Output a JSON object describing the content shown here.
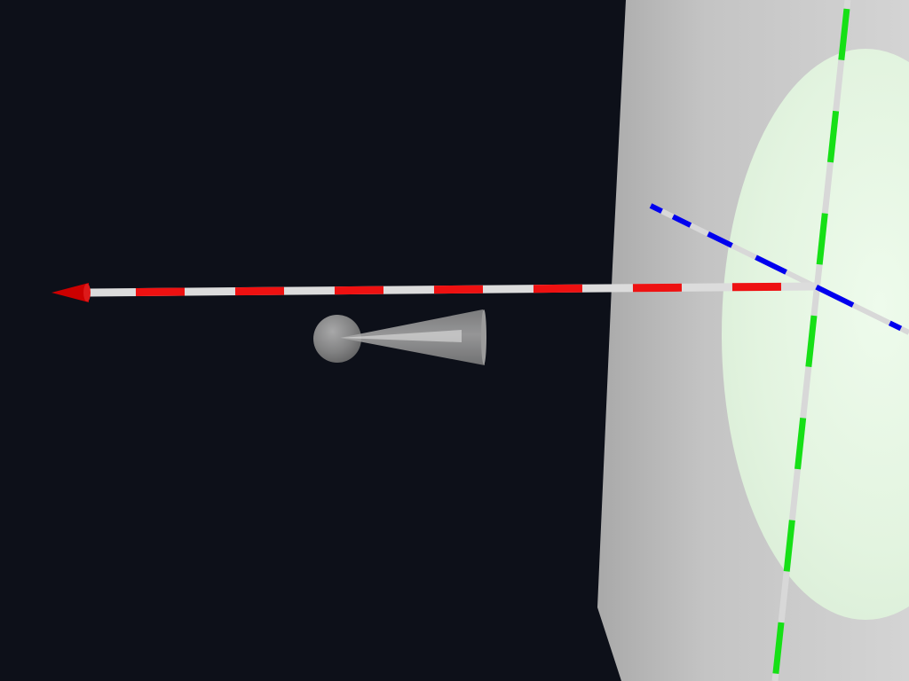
{
  "scene": {
    "background_color": "#0d1019",
    "wall_color": "#c8c8c8",
    "spotlight_color": "#e4f6e2",
    "axes": [
      {
        "name": "x-axis",
        "color": "#ff0000",
        "stripe_color": "#e6e6e6",
        "has_arrowhead": true
      },
      {
        "name": "y-axis",
        "color": "#00ee00",
        "stripe_color": "#e6e6e6",
        "has_arrowhead": false
      },
      {
        "name": "z-axis",
        "color": "#0000ff",
        "stripe_color": "#e6e6e6",
        "has_arrowhead": false
      }
    ],
    "light_gizmo": {
      "sphere_color": "#8a8a8a",
      "cone_color": "#9a9a9a"
    }
  }
}
